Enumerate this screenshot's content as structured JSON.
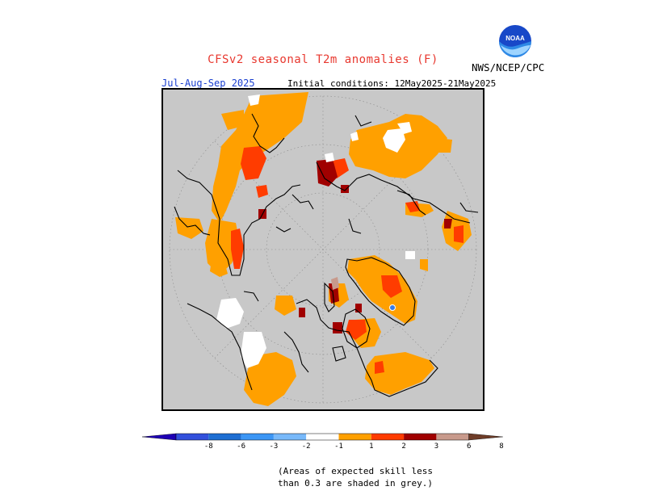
{
  "title": "CFSv2 seasonal T2m anomalies (F)",
  "organization": "NWS/NCEP/CPC",
  "logo_text": "NOAA",
  "season": "Jul-Aug-Sep 2025",
  "initial_conditions": "Initial conditions: 12May2025-21May2025",
  "map": {
    "projection": "north polar stereographic",
    "background_color": "#c8c8c8",
    "land_outline_color": "#000000",
    "grid_color": "#888888",
    "skill_mask_color": "#c8c8c8",
    "anomaly_colors": {
      "1_to_2": "#ffa000",
      "2_to_3": "#ff3c00",
      "3_to_6": "#a00000",
      "6_to_8": "#c89a8c",
      "neutral": "#ffffff"
    }
  },
  "colorbar": {
    "labels": [
      "-8",
      "-6",
      "-3",
      "-2",
      "-1",
      "1",
      "2",
      "3",
      "6",
      "8"
    ],
    "colors": [
      "#1e00b4",
      "#3250dc",
      "#1e6ed2",
      "#3c96f5",
      "#78b9fa",
      "#ffffff",
      "#ffa000",
      "#ff3c00",
      "#a00000",
      "#c89a8c",
      "#6e3c28"
    ]
  },
  "note": {
    "line1": "(Areas of expected skill less",
    "line2": "than 0.3 are shaded in grey.)"
  }
}
